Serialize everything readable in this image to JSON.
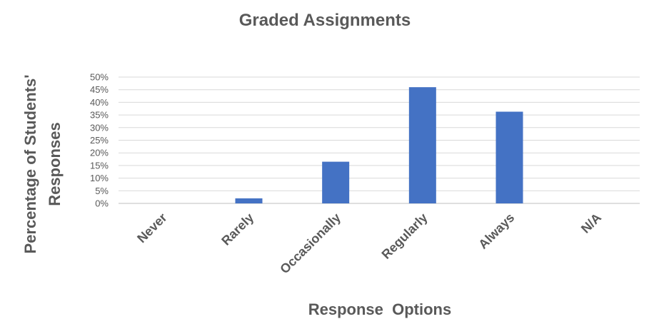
{
  "chart_data": {
    "type": "bar",
    "title": "Graded Assignments",
    "xlabel": "Response  Options",
    "ylabel": "Percentage of Students' Responses",
    "ylabel_lines": [
      "Percentage of Students'",
      "Responses"
    ],
    "categories": [
      "Never",
      "Rarely",
      "Occasionally",
      "Regularly",
      "Always",
      "N/A"
    ],
    "values": [
      0,
      2,
      16.5,
      46,
      36.3,
      0
    ],
    "ylim": [
      0,
      50
    ],
    "y_ticks": [
      0,
      5,
      10,
      15,
      20,
      25,
      30,
      35,
      40,
      45,
      50
    ],
    "y_tick_labels": [
      "0%",
      "5%",
      "10%",
      "15%",
      "20%",
      "25%",
      "30%",
      "35%",
      "40%",
      "45%",
      "50%"
    ],
    "bar_color": "#4472C4",
    "grid": true,
    "legend": "none"
  }
}
